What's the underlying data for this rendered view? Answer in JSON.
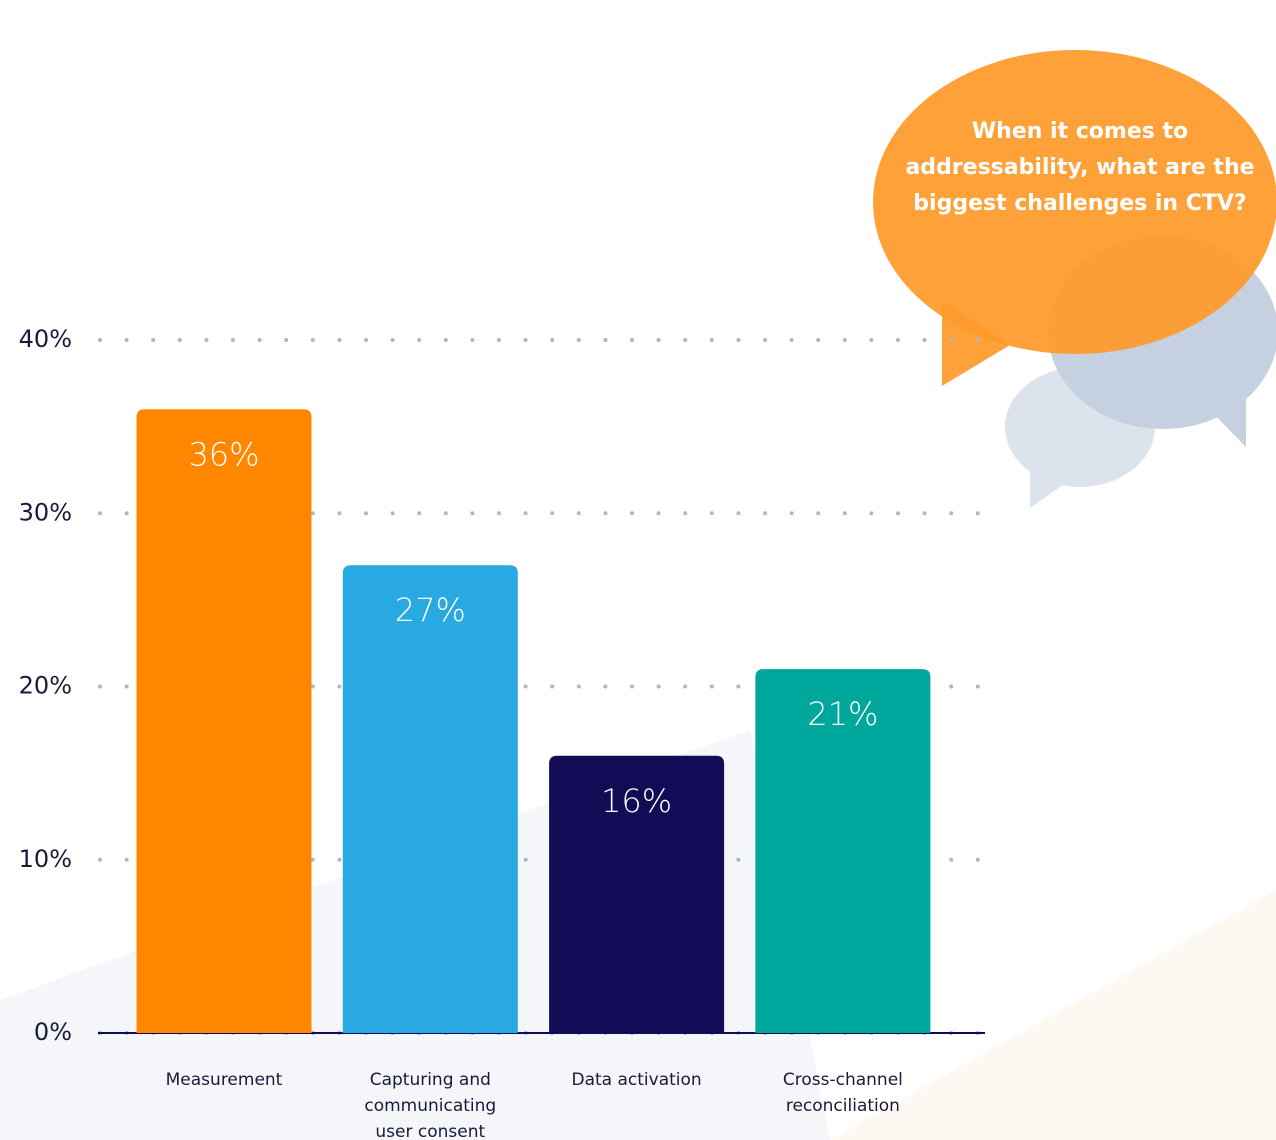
{
  "chart_data": {
    "type": "bar",
    "title": "When it comes to addressability, what are the biggest challenges in CTV?",
    "categories": [
      "Measurement",
      "Capturing and communicating user consent",
      "Data activation",
      "Cross-channel reconciliation"
    ],
    "values": [
      36,
      27,
      16,
      21
    ],
    "value_labels": [
      "36%",
      "27%",
      "16%",
      "21%"
    ],
    "colors": [
      "#ff8700",
      "#29a9e1",
      "#120b56",
      "#00a79d"
    ],
    "ylim": [
      0,
      40
    ],
    "yticks": [
      {
        "value": 0,
        "label": "0%"
      },
      {
        "value": 10,
        "label": "10%"
      },
      {
        "value": 20,
        "label": "20%"
      },
      {
        "value": 30,
        "label": "30%"
      },
      {
        "value": 40,
        "label": "40%"
      }
    ],
    "grid": true
  }
}
